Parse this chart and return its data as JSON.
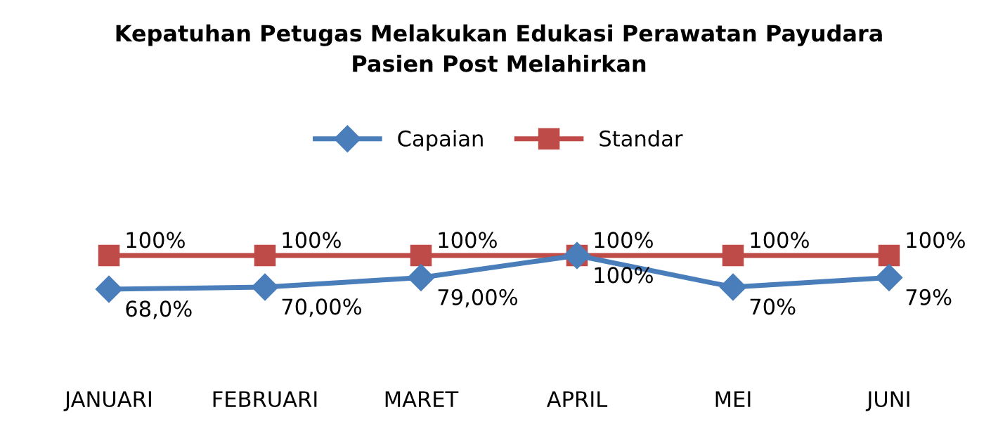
{
  "chart_data": {
    "type": "line",
    "title": "Kepatuhan Petugas Melakukan Edukasi Perawatan Payudara\nPasien Post Melahirkan",
    "categories": [
      "JANUARI",
      "FEBRUARI",
      "MARET",
      "APRIL",
      "MEI",
      "JUNI"
    ],
    "series": [
      {
        "name": "Capaian",
        "color": "#4a7ebb",
        "marker": "diamond",
        "values": [
          68,
          70,
          79,
          100,
          70,
          79
        ],
        "value_labels": [
          "68,0%",
          "70,00%",
          "79,00%",
          "100%",
          "70%",
          "79%"
        ]
      },
      {
        "name": "Standar",
        "color": "#be4b48",
        "marker": "square",
        "values": [
          100,
          100,
          100,
          100,
          100,
          100
        ],
        "value_labels": [
          "100%",
          "100%",
          "100%",
          "100%",
          "100%",
          "100%"
        ]
      }
    ],
    "legend": "top",
    "grid": false
  }
}
